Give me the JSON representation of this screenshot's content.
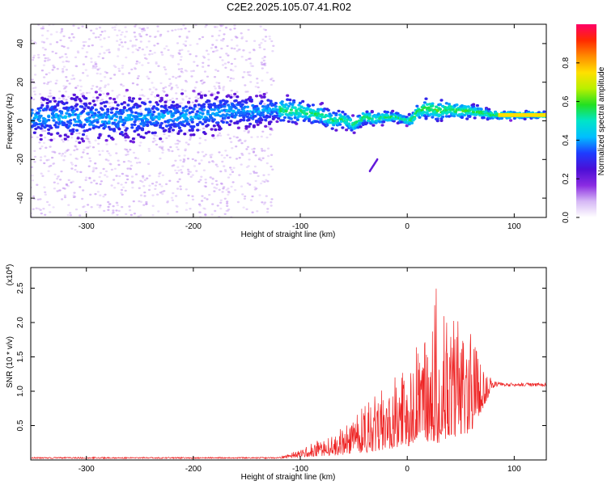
{
  "figure_title": "C2E2.2025.105.07.41.R02",
  "chart_data": [
    {
      "type": "heatmap",
      "xlabel": "Height of straight line (km)",
      "ylabel": "Frequency (Hz)",
      "xlim": [
        -352,
        130
      ],
      "ylim": [
        -50,
        50
      ],
      "x_ticks": [
        -300,
        -200,
        -100,
        0,
        100
      ],
      "y_ticks": [
        -40,
        -20,
        0,
        20,
        40
      ],
      "colorbar": {
        "label": "Normalized spectral amplitude",
        "range": [
          0,
          1
        ],
        "ticks": [
          0.0,
          0.2,
          0.4,
          0.6,
          0.8
        ],
        "colormap": [
          "#ffffff",
          "#d6b8f5",
          "#8a2be2",
          "#4b0fd6",
          "#1e3cff",
          "#00bfff",
          "#00e5c8",
          "#22e022",
          "#b8f000",
          "#ffe000",
          "#ff8c00",
          "#ff2a00",
          "#ff0066"
        ]
      },
      "center_frequency_profile": [
        [
          -352,
          2
        ],
        [
          -320,
          2
        ],
        [
          -280,
          1
        ],
        [
          -240,
          2
        ],
        [
          -200,
          2
        ],
        [
          -180,
          4
        ],
        [
          -160,
          5
        ],
        [
          -140,
          5
        ],
        [
          -120,
          6
        ],
        [
          -110,
          5
        ],
        [
          -100,
          5
        ],
        [
          -80,
          3
        ],
        [
          -70,
          0
        ],
        [
          -60,
          1
        ],
        [
          -50,
          -2
        ],
        [
          -40,
          2
        ],
        [
          -30,
          1
        ],
        [
          -20,
          2
        ],
        [
          -10,
          2
        ],
        [
          0,
          0
        ],
        [
          5,
          1
        ],
        [
          10,
          5
        ],
        [
          20,
          7
        ],
        [
          30,
          5
        ],
        [
          40,
          6
        ],
        [
          50,
          5
        ],
        [
          60,
          5
        ],
        [
          70,
          4
        ],
        [
          80,
          3
        ],
        [
          90,
          3
        ],
        [
          100,
          3
        ],
        [
          110,
          3
        ],
        [
          120,
          3
        ],
        [
          130,
          3
        ]
      ],
      "band_halfwidth_profile": [
        [
          -352,
          10
        ],
        [
          -250,
          10
        ],
        [
          -150,
          8
        ],
        [
          -120,
          6
        ],
        [
          -100,
          5
        ],
        [
          -60,
          4
        ],
        [
          -30,
          3
        ],
        [
          0,
          2
        ],
        [
          20,
          5
        ],
        [
          60,
          3
        ],
        [
          80,
          2
        ],
        [
          130,
          1.5
        ]
      ],
      "scatter_region_xlim": [
        -352,
        -125
      ],
      "scatter_region_ylim": [
        -50,
        50
      ],
      "detached_feature": {
        "x": [
          -35,
          -28
        ],
        "y": [
          -26,
          -20
        ]
      },
      "tone_band": {
        "xlim": [
          85,
          130
        ],
        "y": [
          2,
          4
        ]
      }
    },
    {
      "type": "line",
      "xlabel": "Height of straight line (km)",
      "ylabel": "SNR (10 * v/v)",
      "y_multiplier": "(x10",
      "y_multiplier_exponent": "4",
      "y_multiplier_close": ")",
      "xlim": [
        -352,
        130
      ],
      "ylim": [
        0,
        2.8
      ],
      "x_ticks": [
        -300,
        -200,
        -100,
        0,
        100
      ],
      "y_ticks": [
        0.5,
        1.0,
        1.5,
        2.0,
        2.5
      ],
      "series": [
        {
          "color": "#ee2222",
          "envelope": [
            [
              -352,
              0.04
            ],
            [
              -200,
              0.04
            ],
            [
              -120,
              0.04
            ],
            [
              -110,
              0.1
            ],
            [
              -100,
              0.15
            ],
            [
              -90,
              0.25
            ],
            [
              -80,
              0.3
            ],
            [
              -70,
              0.35
            ],
            [
              -60,
              0.5
            ],
            [
              -50,
              0.6
            ],
            [
              -40,
              0.8
            ],
            [
              -30,
              0.95
            ],
            [
              -20,
              1.05
            ],
            [
              -10,
              1.25
            ],
            [
              0,
              1.35
            ],
            [
              10,
              1.7
            ],
            [
              20,
              1.8
            ],
            [
              30,
              2.8
            ],
            [
              40,
              2.1
            ],
            [
              50,
              2.0
            ],
            [
              60,
              1.9
            ],
            [
              70,
              1.4
            ],
            [
              80,
              1.15
            ],
            [
              90,
              1.1
            ],
            [
              100,
              1.1
            ],
            [
              130,
              1.1
            ]
          ],
          "floor": [
            [
              -352,
              0.02
            ],
            [
              -120,
              0.02
            ],
            [
              -90,
              0.05
            ],
            [
              -50,
              0.08
            ],
            [
              0,
              0.2
            ],
            [
              30,
              0.25
            ],
            [
              60,
              0.4
            ],
            [
              80,
              1.05
            ],
            [
              90,
              1.08
            ],
            [
              130,
              1.08
            ]
          ]
        }
      ]
    }
  ]
}
